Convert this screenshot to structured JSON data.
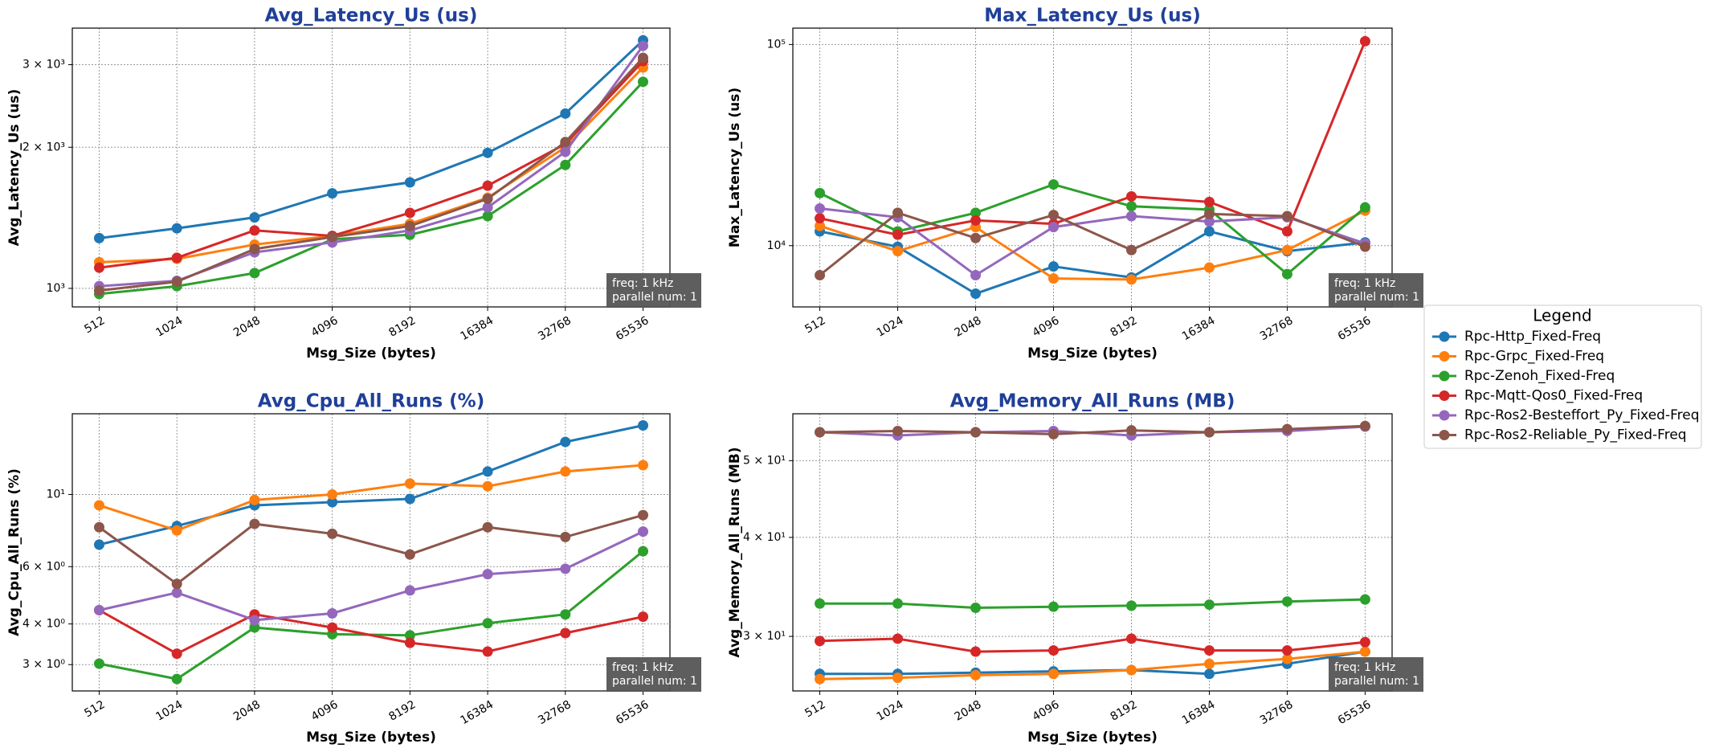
{
  "chart_data": [
    {
      "type": "line",
      "title": "Avg_Latency_Us  (us)",
      "x_label": "Msg_Size (bytes)",
      "y_label": "Avg_Latency_Us (us)",
      "categories": [
        512,
        1024,
        2048,
        4096,
        8192,
        16384,
        32768,
        65536
      ],
      "log_y": true,
      "grid": true,
      "ylim": [
        913,
        3590
      ],
      "yticks": [
        {
          "value": 1000,
          "label": "10³"
        },
        {
          "value": 2000,
          "label": "2 × 10³"
        },
        {
          "value": 3000,
          "label": "3 × 10³"
        }
      ],
      "annotation": [
        "freq: 1 kHz",
        "parallel num: 1"
      ],
      "series": [
        {
          "name": "Rpc-Http_Fixed-Freq",
          "color": "#1f77b4",
          "values": [
            1280,
            1343,
            1417,
            1595,
            1683,
            1946,
            2360,
            3381
          ]
        },
        {
          "name": "Rpc-Grpc_Fixed-Freq",
          "color": "#ff7f0e",
          "values": [
            1137,
            1156,
            1240,
            1294,
            1373,
            1561,
            2000,
            2958
          ]
        },
        {
          "name": "Rpc-Zenoh_Fixed-Freq",
          "color": "#2ca02c",
          "values": [
            973,
            1011,
            1078,
            1273,
            1301,
            1426,
            1834,
            2758
          ]
        },
        {
          "name": "Rpc-Mqtt-Qos0_Fixed-Freq",
          "color": "#d62728",
          "values": [
            1107,
            1162,
            1329,
            1294,
            1449,
            1656,
            2032,
            3053
          ]
        },
        {
          "name": "Rpc-Ros2-Besteffort_Py_Fixed-Freq",
          "color": "#9467bd",
          "values": [
            1011,
            1038,
            1194,
            1253,
            1329,
            1488,
            1956,
            3291
          ]
        },
        {
          "name": "Rpc-Ros2-Reliable_Py_Fixed-Freq",
          "color": "#8c564b",
          "values": [
            989,
            1033,
            1213,
            1287,
            1358,
            1553,
            2052,
            3103
          ]
        }
      ]
    },
    {
      "type": "line",
      "title": "Max_Latency_Us  (us)",
      "x_label": "Msg_Size (bytes)",
      "y_label": "Max_Latency_Us (us)",
      "categories": [
        512,
        1024,
        2048,
        4096,
        8192,
        16384,
        32768,
        65536
      ],
      "log_y": true,
      "grid": true,
      "ylim": [
        4960,
        120600
      ],
      "yticks": [
        {
          "value": 10000,
          "label": "10⁴"
        },
        {
          "value": 100000,
          "label": "10⁵"
        }
      ],
      "annotation": [
        "freq: 1 kHz",
        "parallel num: 1"
      ],
      "series": [
        {
          "name": "Rpc-Http_Fixed-Freq",
          "color": "#1f77b4",
          "values": [
            11770,
            9875,
            5770,
            7880,
            6950,
            11770,
            9390,
            10380
          ]
        },
        {
          "name": "Rpc-Grpc_Fixed-Freq",
          "color": "#ff7f0e",
          "values": [
            12530,
            9390,
            12370,
            6870,
            6790,
            7780,
            9510,
            14930
          ]
        },
        {
          "name": "Rpc-Zenoh_Fixed-Freq",
          "color": "#2ca02c",
          "values": [
            18240,
            11770,
            14560,
            20150,
            15700,
            15110,
            7220,
            15490
          ]
        },
        {
          "name": "Rpc-Mqtt-Qos0_Fixed-Freq",
          "color": "#d62728",
          "values": [
            13680,
            11330,
            13340,
            12840,
            17570,
            16490,
            11770,
            103800
          ]
        },
        {
          "name": "Rpc-Ros2-Besteffort_Py_Fixed-Freq",
          "color": "#9467bd",
          "values": [
            15300,
            13840,
            7130,
            12370,
            14020,
            13180,
            13840,
            10250
          ]
        },
        {
          "name": "Rpc-Ros2-Reliable_Py_Fixed-Freq",
          "color": "#8c564b",
          "values": [
            7130,
            14560,
            10910,
            14200,
            9510,
            14370,
            14020,
            9875
          ]
        }
      ]
    },
    {
      "type": "line",
      "title": "Avg_Cpu_All_Runs  (%)",
      "x_label": "Msg_Size (bytes)",
      "y_label": "Avg_Cpu_All_Runs (%)",
      "categories": [
        512,
        1024,
        2048,
        4096,
        8192,
        16384,
        32768,
        65536
      ],
      "log_y": true,
      "grid": true,
      "ylim": [
        2.49,
        17.7
      ],
      "yticks": [
        {
          "value": 3,
          "label": "3 × 10⁰"
        },
        {
          "value": 4,
          "label": "4 × 10⁰"
        },
        {
          "value": 6,
          "label": "6 × 10⁰"
        },
        {
          "value": 10,
          "label": "10¹"
        }
      ],
      "annotation": [
        "freq: 1 kHz",
        "parallel num: 1"
      ],
      "series": [
        {
          "name": "Rpc-Http_Fixed-Freq",
          "color": "#1f77b4",
          "values": [
            7.01,
            8.0,
            9.26,
            9.47,
            9.69,
            11.76,
            14.5,
            16.3
          ]
        },
        {
          "name": "Rpc-Grpc_Fixed-Freq",
          "color": "#ff7f0e",
          "values": [
            9.26,
            7.75,
            9.62,
            10,
            10.8,
            10.6,
            11.76,
            12.3
          ]
        },
        {
          "name": "Rpc-Zenoh_Fixed-Freq",
          "color": "#2ca02c",
          "values": [
            3.02,
            2.71,
            3.9,
            3.72,
            3.69,
            4.02,
            4.28,
            6.69
          ]
        },
        {
          "name": "Rpc-Mqtt-Qos0_Fixed-Freq",
          "color": "#d62728",
          "values": [
            4.41,
            3.24,
            4.28,
            3.9,
            3.5,
            3.29,
            3.75,
            4.21
          ]
        },
        {
          "name": "Rpc-Ros2-Besteffort_Py_Fixed-Freq",
          "color": "#9467bd",
          "values": [
            4.41,
            4.99,
            4.11,
            4.31,
            5.07,
            5.69,
            5.91,
            7.69
          ]
        },
        {
          "name": "Rpc-Ros2-Reliable_Py_Fixed-Freq",
          "color": "#8c564b",
          "values": [
            7.93,
            5.31,
            8.12,
            7.57,
            6.54,
            7.93,
            7.4,
            8.64
          ]
        }
      ]
    },
    {
      "type": "line",
      "title": "Avg_Memory_All_Runs  (MB)",
      "x_label": "Msg_Size (bytes)",
      "y_label": "Avg_Memory_All_Runs (MB)",
      "categories": [
        512,
        1024,
        2048,
        4096,
        8192,
        16384,
        32768,
        65536
      ],
      "log_y": true,
      "grid": true,
      "ylim": [
        25.6,
        57.3
      ],
      "yticks": [
        {
          "value": 30,
          "label": "3 × 10¹"
        },
        {
          "value": 40,
          "label": "4 × 10¹"
        },
        {
          "value": 50,
          "label": "5 × 10¹"
        }
      ],
      "annotation": [
        "freq: 1 kHz",
        "parallel num: 1"
      ],
      "series": [
        {
          "name": "Rpc-Http_Fixed-Freq",
          "color": "#1f77b4",
          "values": [
            26.9,
            26.9,
            27.0,
            27.1,
            27.2,
            26.9,
            27.7,
            28.7
          ]
        },
        {
          "name": "Rpc-Grpc_Fixed-Freq",
          "color": "#ff7f0e",
          "values": [
            26.5,
            26.6,
            26.8,
            26.9,
            27.2,
            27.7,
            28.1,
            28.7
          ]
        },
        {
          "name": "Rpc-Zenoh_Fixed-Freq",
          "color": "#2ca02c",
          "values": [
            33.0,
            33.0,
            32.6,
            32.7,
            32.8,
            32.9,
            33.2,
            33.4
          ]
        },
        {
          "name": "Rpc-Mqtt-Qos0_Fixed-Freq",
          "color": "#d62728",
          "values": [
            29.6,
            29.8,
            28.7,
            28.8,
            29.8,
            28.8,
            28.8,
            29.5
          ]
        },
        {
          "name": "Rpc-Ros2-Besteffort_Py_Fixed-Freq",
          "color": "#9467bd",
          "values": [
            54.3,
            53.8,
            54.3,
            54.5,
            53.8,
            54.3,
            54.5,
            55.2
          ]
        },
        {
          "name": "Rpc-Ros2-Reliable_Py_Fixed-Freq",
          "color": "#8c564b",
          "values": [
            54.3,
            54.5,
            54.3,
            54.0,
            54.6,
            54.3,
            54.8,
            55.3
          ]
        }
      ]
    }
  ],
  "legend": {
    "title": "Legend"
  }
}
